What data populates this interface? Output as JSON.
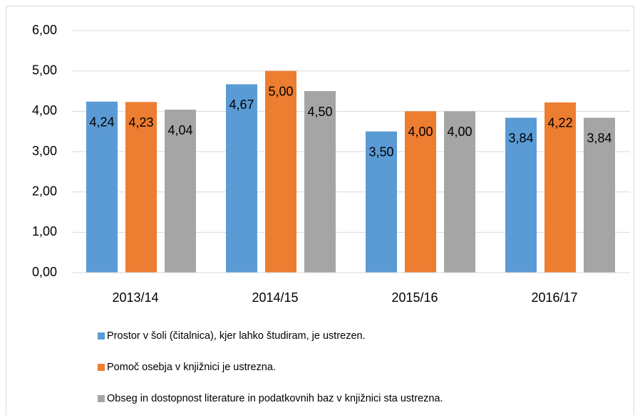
{
  "chart_data": {
    "type": "bar",
    "categories": [
      "2013/14",
      "2014/15",
      "2015/16",
      "2016/17"
    ],
    "series": [
      {
        "name": "Prostor v šoli (čitalnica), kjer lahko študiram, je ustrezen.",
        "color": "#5b9bd5",
        "values": [
          4.24,
          4.67,
          3.5,
          3.84
        ],
        "value_labels": [
          "4,24",
          "4,67",
          "3,50",
          "3,84"
        ]
      },
      {
        "name": "Pomoč osebja v knjižnici je ustrezna.",
        "color": "#ed7d31",
        "values": [
          4.23,
          5.0,
          4.0,
          4.22
        ],
        "value_labels": [
          "4,23",
          "5,00",
          "4,00",
          "4,22"
        ]
      },
      {
        "name": "Obseg in dostopnost literature in podatkovnih baz v knjižnici sta ustrezna.",
        "color": "#a5a5a5",
        "values": [
          4.04,
          4.5,
          4.0,
          3.84
        ],
        "value_labels": [
          "4,04",
          "4,50",
          "4,00",
          "3,84"
        ]
      }
    ],
    "ylim": [
      0,
      6
    ],
    "yticks": [
      {
        "value": 0,
        "label": "0,00"
      },
      {
        "value": 1,
        "label": "1,00"
      },
      {
        "value": 2,
        "label": "2,00"
      },
      {
        "value": 3,
        "label": "3,00"
      },
      {
        "value": 4,
        "label": "4,00"
      },
      {
        "value": 5,
        "label": "5,00"
      },
      {
        "value": 6,
        "label": "6,00"
      }
    ],
    "grid": true,
    "legend": "bottom"
  }
}
